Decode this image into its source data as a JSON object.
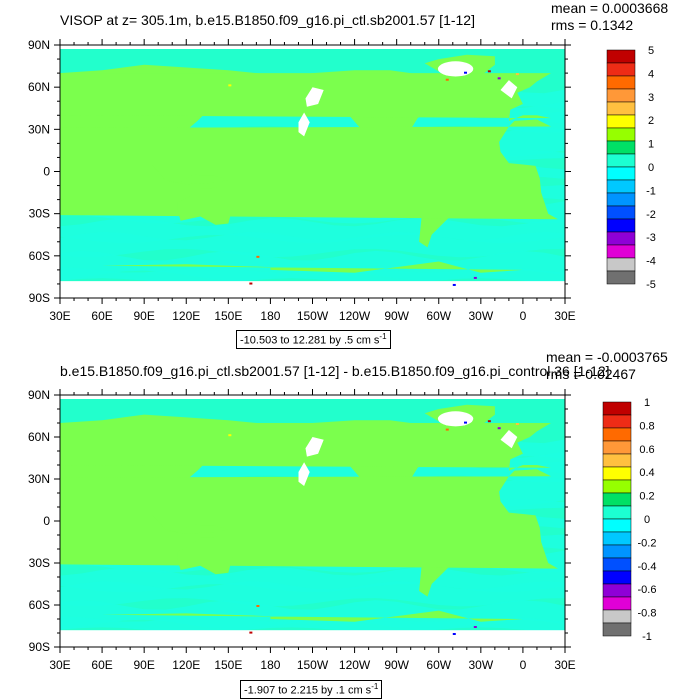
{
  "panels": [
    {
      "title": "VISOP at z= 305.1m, b.e15.B1850.f09_g16.pi_ctl.sb2001.57 [1-12]",
      "mean": "mean = 0.0003668",
      "rms": "rms = 0.1342",
      "contour_info": "-10.503 to 12.281 by .5 cm s",
      "contour_unit_exp": "-1",
      "colorbar_labels": [
        "5",
        "4",
        "3",
        "2",
        "1",
        "0",
        "-1",
        "-2",
        "-3",
        "-4",
        "-5"
      ]
    },
    {
      "title": "b.e15.B1850.f09_g16.pi_ctl.sb2001.57 [1-12] - b.e15.B1850.f09_g16.pi_control.36 [1-12]",
      "mean": "mean = -0.0003765",
      "rms": "rms = 0.02467",
      "contour_info": "-1.907 to 2.215 by .1 cm s",
      "contour_unit_exp": "-1",
      "colorbar_labels": [
        "1",
        "0.8",
        "0.6",
        "0.4",
        "0.2",
        "0",
        "-0.2",
        "-0.4",
        "-0.6",
        "-0.8",
        "-1"
      ]
    }
  ],
  "lat_labels": [
    "90N",
    "60N",
    "30N",
    "0",
    "30S",
    "60S",
    "90S"
  ],
  "lon_labels": [
    "30E",
    "60E",
    "90E",
    "120E",
    "150E",
    "180",
    "150W",
    "120W",
    "90W",
    "60W",
    "30W",
    "0",
    "30E"
  ],
  "colorbar_colors": [
    "#c00000",
    "#ee2c16",
    "#ff6a00",
    "#ff9838",
    "#ffc040",
    "#ffff00",
    "#96ff00",
    "#00e066",
    "#1cffd2",
    "#00ffff",
    "#00c8ff",
    "#0094ff",
    "#0050ff",
    "#0000ff",
    "#8f00d6",
    "#e000d6",
    "#c8c8c8",
    "#707070"
  ],
  "map_colors": {
    "ocean_base": "#22ffcc",
    "ocean_band": "#1dffe0",
    "land": "#7bff4d",
    "mask": "#ffffff"
  }
}
